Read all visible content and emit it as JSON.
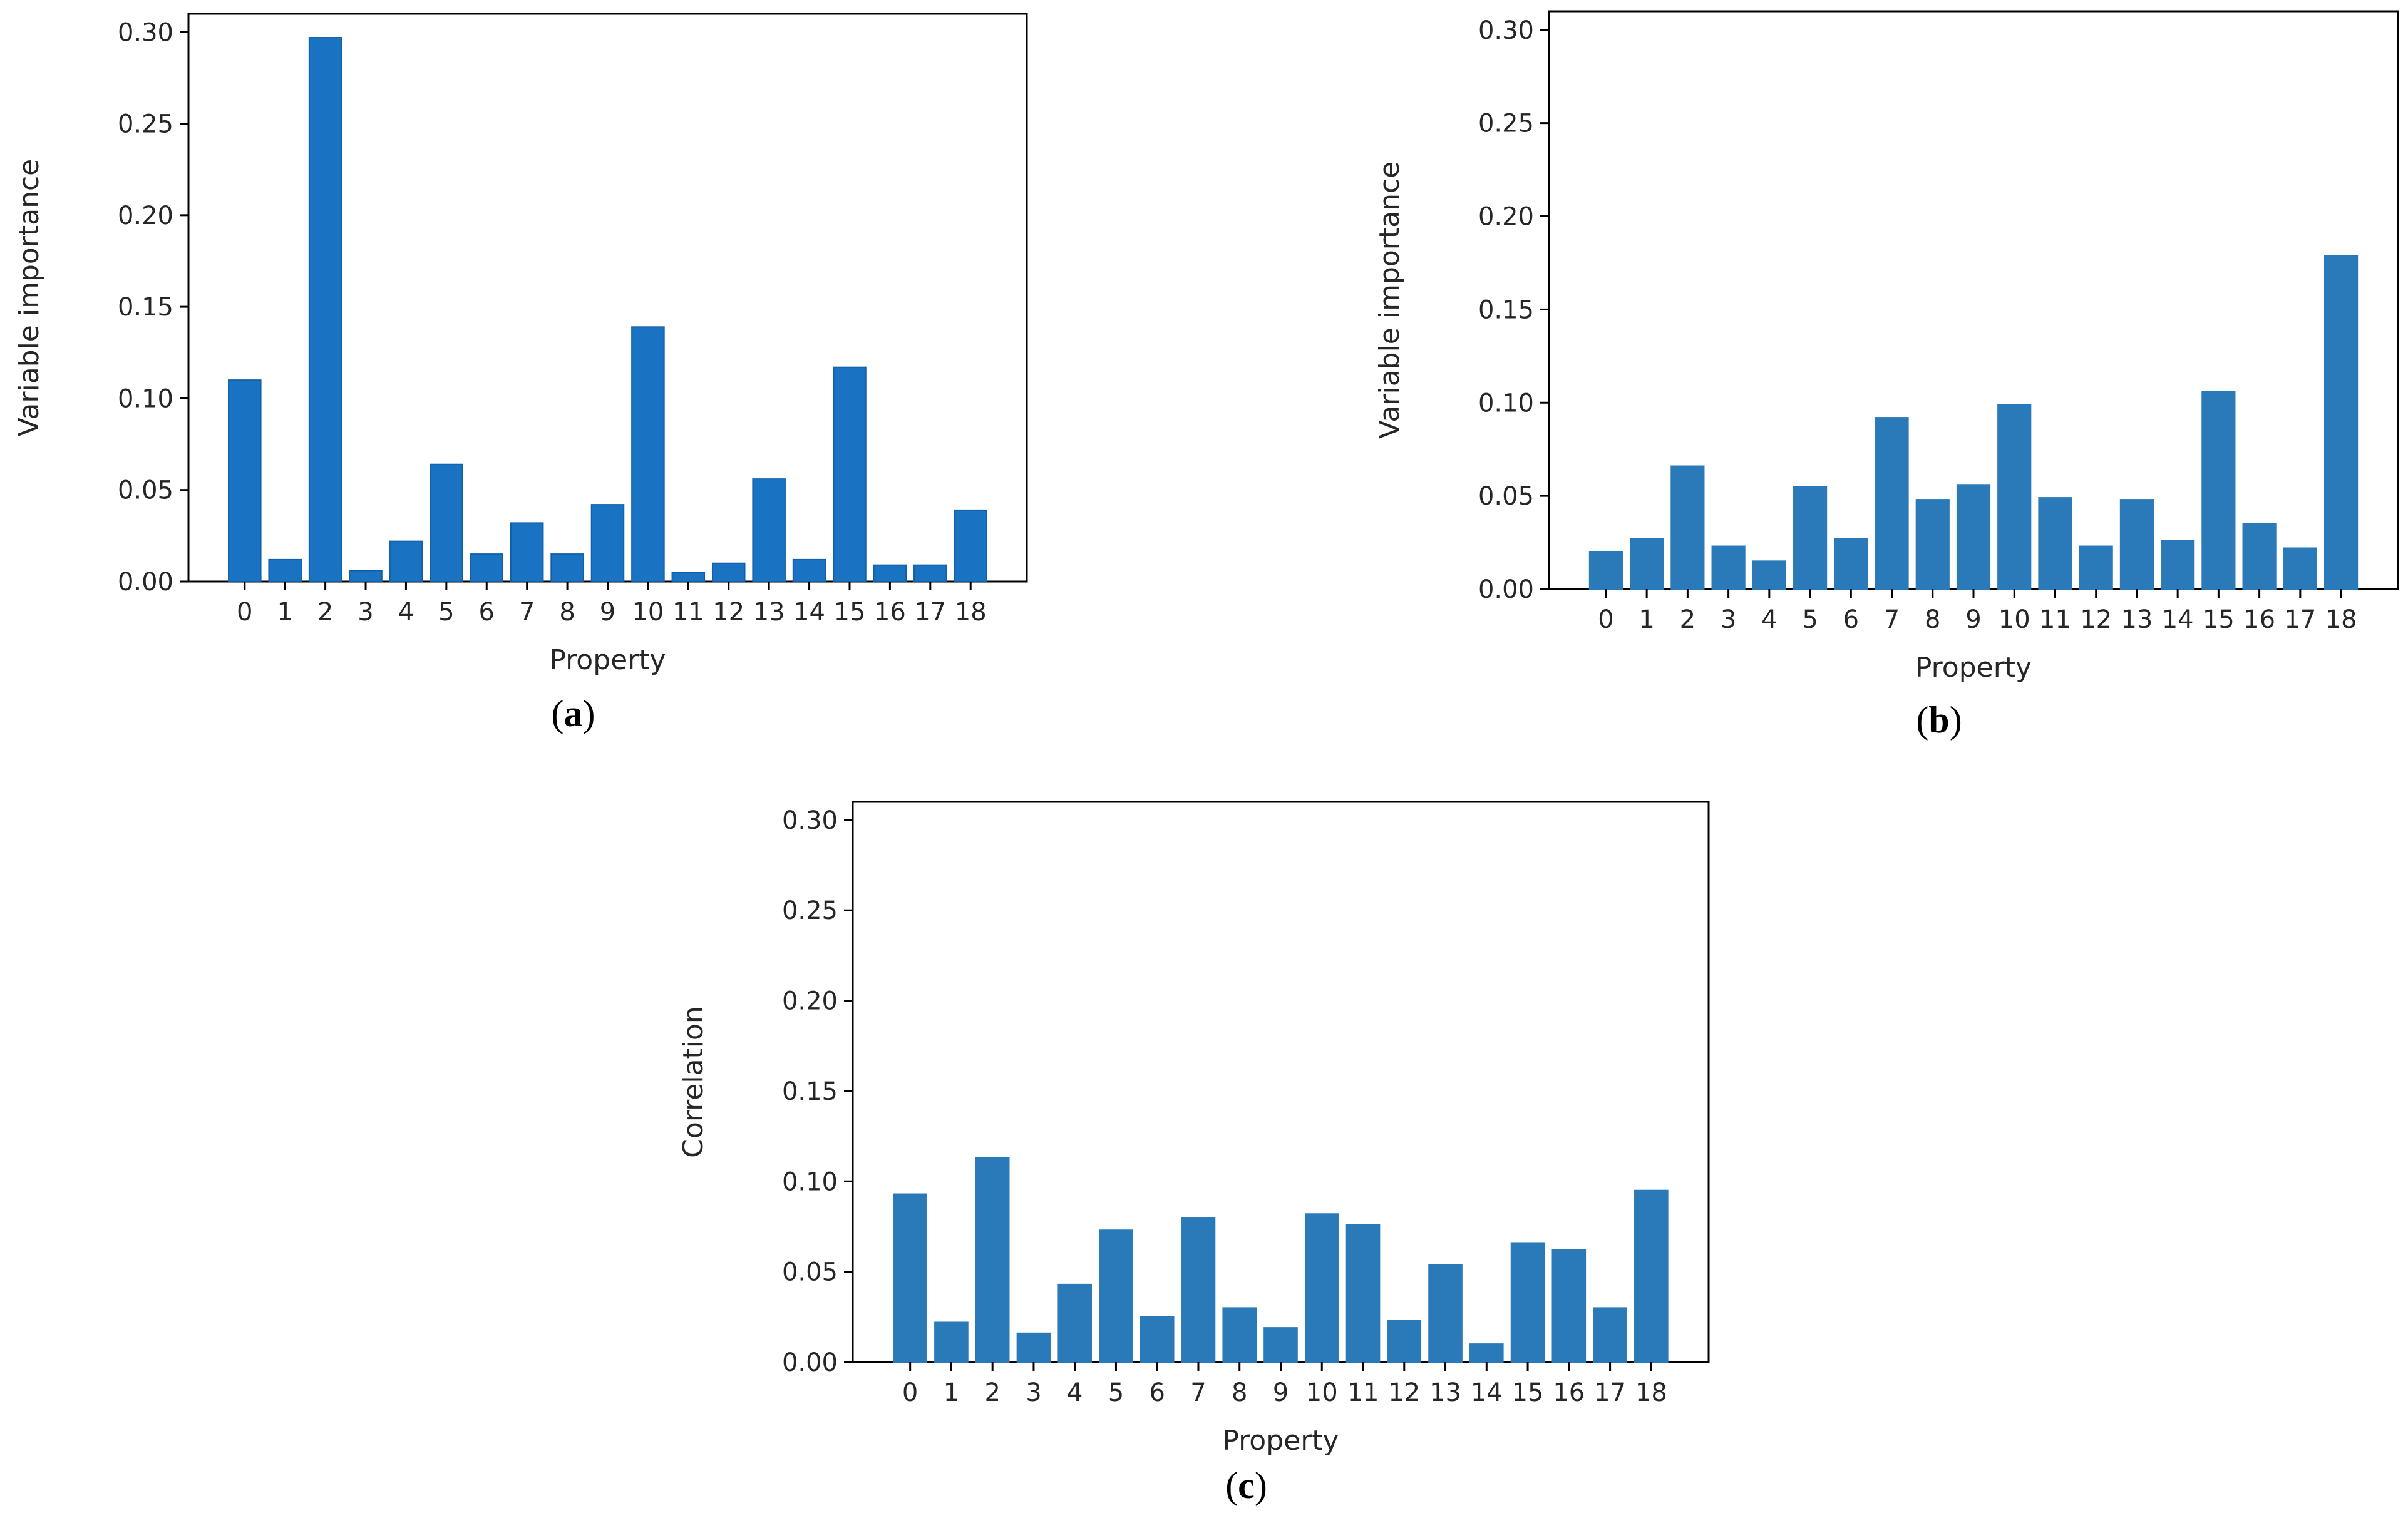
{
  "chart_data": [
    {
      "id": "a",
      "type": "bar",
      "panel_label": "a",
      "bar_color": "#1a73c2",
      "bar_edge": "#1060a8",
      "xlabel": "Property",
      "ylabel": "Variable importance",
      "ylim": [
        0,
        0.31
      ],
      "yticks": [
        "0.00",
        "0.05",
        "0.10",
        "0.15",
        "0.20",
        "0.25",
        "0.30"
      ],
      "categories": [
        "0",
        "1",
        "2",
        "3",
        "4",
        "5",
        "6",
        "7",
        "8",
        "9",
        "10",
        "11",
        "12",
        "13",
        "14",
        "15",
        "16",
        "17",
        "18"
      ],
      "values": [
        0.11,
        0.012,
        0.297,
        0.006,
        0.022,
        0.064,
        0.015,
        0.032,
        0.015,
        0.042,
        0.139,
        0.005,
        0.01,
        0.056,
        0.012,
        0.117,
        0.009,
        0.009,
        0.039
      ]
    },
    {
      "id": "b",
      "type": "bar",
      "panel_label": "b",
      "bar_color": "#2a7ab9",
      "bar_edge": "#2a7ab9",
      "xlabel": "Property",
      "ylabel": "Variable importance",
      "ylim": [
        0,
        0.31
      ],
      "yticks": [
        "0.00",
        "0.05",
        "0.10",
        "0.15",
        "0.20",
        "0.25",
        "0.30"
      ],
      "categories": [
        "0",
        "1",
        "2",
        "3",
        "4",
        "5",
        "6",
        "7",
        "8",
        "9",
        "10",
        "11",
        "12",
        "13",
        "14",
        "15",
        "16",
        "17",
        "18"
      ],
      "values": [
        0.02,
        0.027,
        0.066,
        0.023,
        0.015,
        0.055,
        0.027,
        0.092,
        0.048,
        0.056,
        0.099,
        0.049,
        0.023,
        0.048,
        0.026,
        0.106,
        0.035,
        0.022,
        0.179
      ]
    },
    {
      "id": "c",
      "type": "bar",
      "panel_label": "c",
      "bar_color": "#2a7ab9",
      "bar_edge": "#2a7ab9",
      "xlabel": "Property",
      "ylabel": "Correlation",
      "ylim": [
        0,
        0.31
      ],
      "yticks": [
        "0.00",
        "0.05",
        "0.10",
        "0.15",
        "0.20",
        "0.25",
        "0.30"
      ],
      "categories": [
        "0",
        "1",
        "2",
        "3",
        "4",
        "5",
        "6",
        "7",
        "8",
        "9",
        "10",
        "11",
        "12",
        "13",
        "14",
        "15",
        "16",
        "17",
        "18"
      ],
      "values": [
        0.093,
        0.022,
        0.113,
        0.016,
        0.043,
        0.073,
        0.025,
        0.08,
        0.03,
        0.019,
        0.082,
        0.076,
        0.023,
        0.054,
        0.01,
        0.066,
        0.062,
        0.03,
        0.095
      ]
    }
  ]
}
